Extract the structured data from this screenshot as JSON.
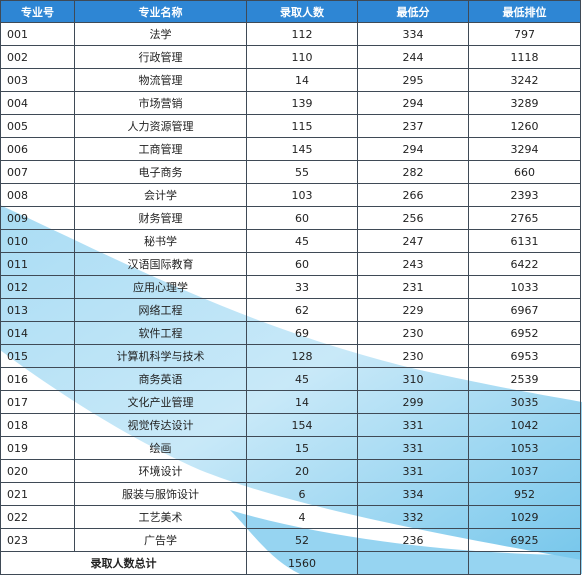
{
  "columns": [
    "专业号",
    "专业名称",
    "录取人数",
    "最低分",
    "最低排位"
  ],
  "rows": [
    [
      "001",
      "法学",
      "112",
      "334",
      "797"
    ],
    [
      "002",
      "行政管理",
      "110",
      "244",
      "1118"
    ],
    [
      "003",
      "物流管理",
      "14",
      "295",
      "3242"
    ],
    [
      "004",
      "市场营销",
      "139",
      "294",
      "3289"
    ],
    [
      "005",
      "人力资源管理",
      "115",
      "237",
      "1260"
    ],
    [
      "006",
      "工商管理",
      "145",
      "294",
      "3294"
    ],
    [
      "007",
      "电子商务",
      "55",
      "282",
      "660"
    ],
    [
      "008",
      "会计学",
      "103",
      "266",
      "2393"
    ],
    [
      "009",
      "财务管理",
      "60",
      "256",
      "2765"
    ],
    [
      "010",
      "秘书学",
      "45",
      "247",
      "6131"
    ],
    [
      "011",
      "汉语国际教育",
      "60",
      "243",
      "6422"
    ],
    [
      "012",
      "应用心理学",
      "33",
      "231",
      "1033"
    ],
    [
      "013",
      "网络工程",
      "62",
      "229",
      "6967"
    ],
    [
      "014",
      "软件工程",
      "69",
      "230",
      "6952"
    ],
    [
      "015",
      "计算机科学与技术",
      "128",
      "230",
      "6953"
    ],
    [
      "016",
      "商务英语",
      "45",
      "310",
      "2539"
    ],
    [
      "017",
      "文化产业管理",
      "14",
      "299",
      "3035"
    ],
    [
      "018",
      "视觉传达设计",
      "154",
      "331",
      "1042"
    ],
    [
      "019",
      "绘画",
      "15",
      "331",
      "1053"
    ],
    [
      "020",
      "环境设计",
      "20",
      "331",
      "1037"
    ],
    [
      "021",
      "服装与服饰设计",
      "6",
      "334",
      "952"
    ],
    [
      "022",
      "工艺美术",
      "4",
      "332",
      "1029"
    ],
    [
      "023",
      "广告学",
      "52",
      "236",
      "6925"
    ]
  ],
  "footer": {
    "label": "录取人数总计",
    "total": "1560"
  },
  "colors": {
    "header_bg": "#2e86d4",
    "header_text": "#ffffff",
    "border": "#3f4a56",
    "decor_blue": "#8fd0f0"
  }
}
